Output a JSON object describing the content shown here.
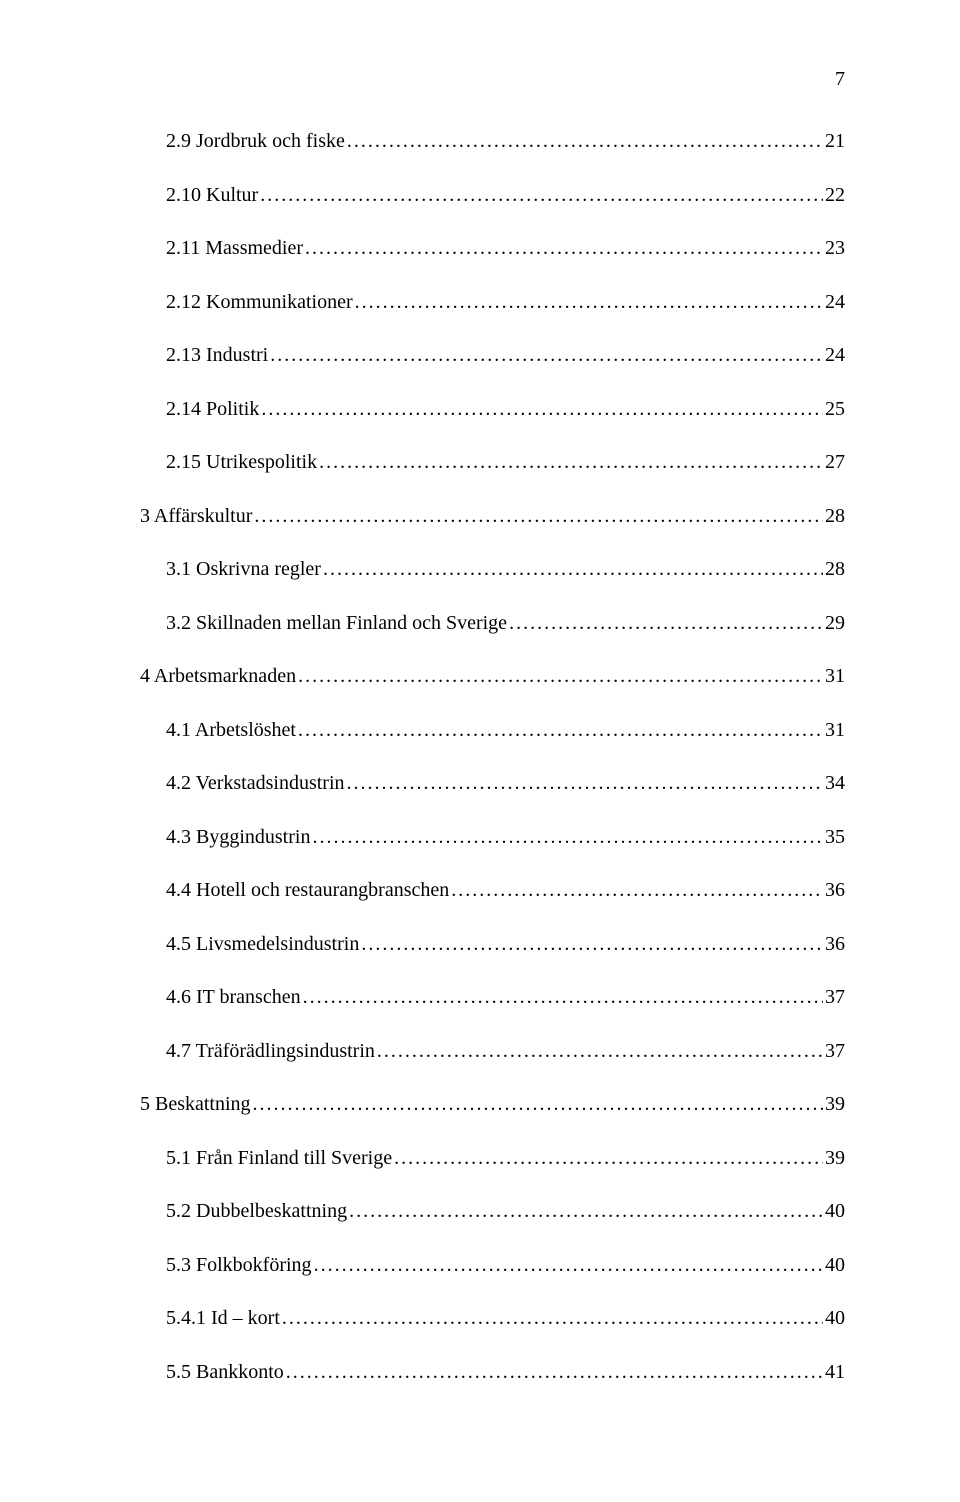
{
  "page_number": "7",
  "entries": [
    {
      "level": 1,
      "label": "2.9 Jordbruk och fiske",
      "page": "21"
    },
    {
      "level": 1,
      "label": "2.10 Kultur",
      "page": "22"
    },
    {
      "level": 1,
      "label": "2.11 Massmedier",
      "page": "23"
    },
    {
      "level": 1,
      "label": "2.12 Kommunikationer",
      "page": "24"
    },
    {
      "level": 1,
      "label": "2.13 Industri",
      "page": "24"
    },
    {
      "level": 1,
      "label": "2.14 Politik",
      "page": "25"
    },
    {
      "level": 1,
      "label": "2.15 Utrikespolitik",
      "page": "27"
    },
    {
      "level": 0,
      "label": "3 Affärskultur",
      "page": "28"
    },
    {
      "level": 1,
      "label": "3.1 Oskrivna regler",
      "page": "28"
    },
    {
      "level": 1,
      "label": "3.2 Skillnaden mellan Finland och Sverige",
      "page": "29"
    },
    {
      "level": 0,
      "label": "4 Arbetsmarknaden",
      "page": "31"
    },
    {
      "level": 1,
      "label": "4.1 Arbetslöshet",
      "page": "31"
    },
    {
      "level": 1,
      "label": "4.2 Verkstadsindustrin",
      "page": "34"
    },
    {
      "level": 1,
      "label": "4.3 Byggindustrin",
      "page": "35"
    },
    {
      "level": 1,
      "label": "4.4 Hotell och restaurangbranschen",
      "page": "36"
    },
    {
      "level": 1,
      "label": "4.5 Livsmedelsindustrin",
      "page": "36"
    },
    {
      "level": 1,
      "label": "4.6 IT branschen",
      "page": "37"
    },
    {
      "level": 1,
      "label": "4.7 Träförädlingsindustrin",
      "page": "37"
    },
    {
      "level": 0,
      "label": "5 Beskattning",
      "page": "39"
    },
    {
      "level": 1,
      "label": "5.1 Från Finland till Sverige",
      "page": "39"
    },
    {
      "level": 1,
      "label": "5.2 Dubbelbeskattning",
      "page": "40"
    },
    {
      "level": 1,
      "label": "5.3 Folkbokföring",
      "page": "40"
    },
    {
      "level": 1,
      "label": "5.4.1 Id – kort",
      "page": "40"
    },
    {
      "level": 1,
      "label": "5.5 Bankkonto",
      "page": "41"
    }
  ]
}
